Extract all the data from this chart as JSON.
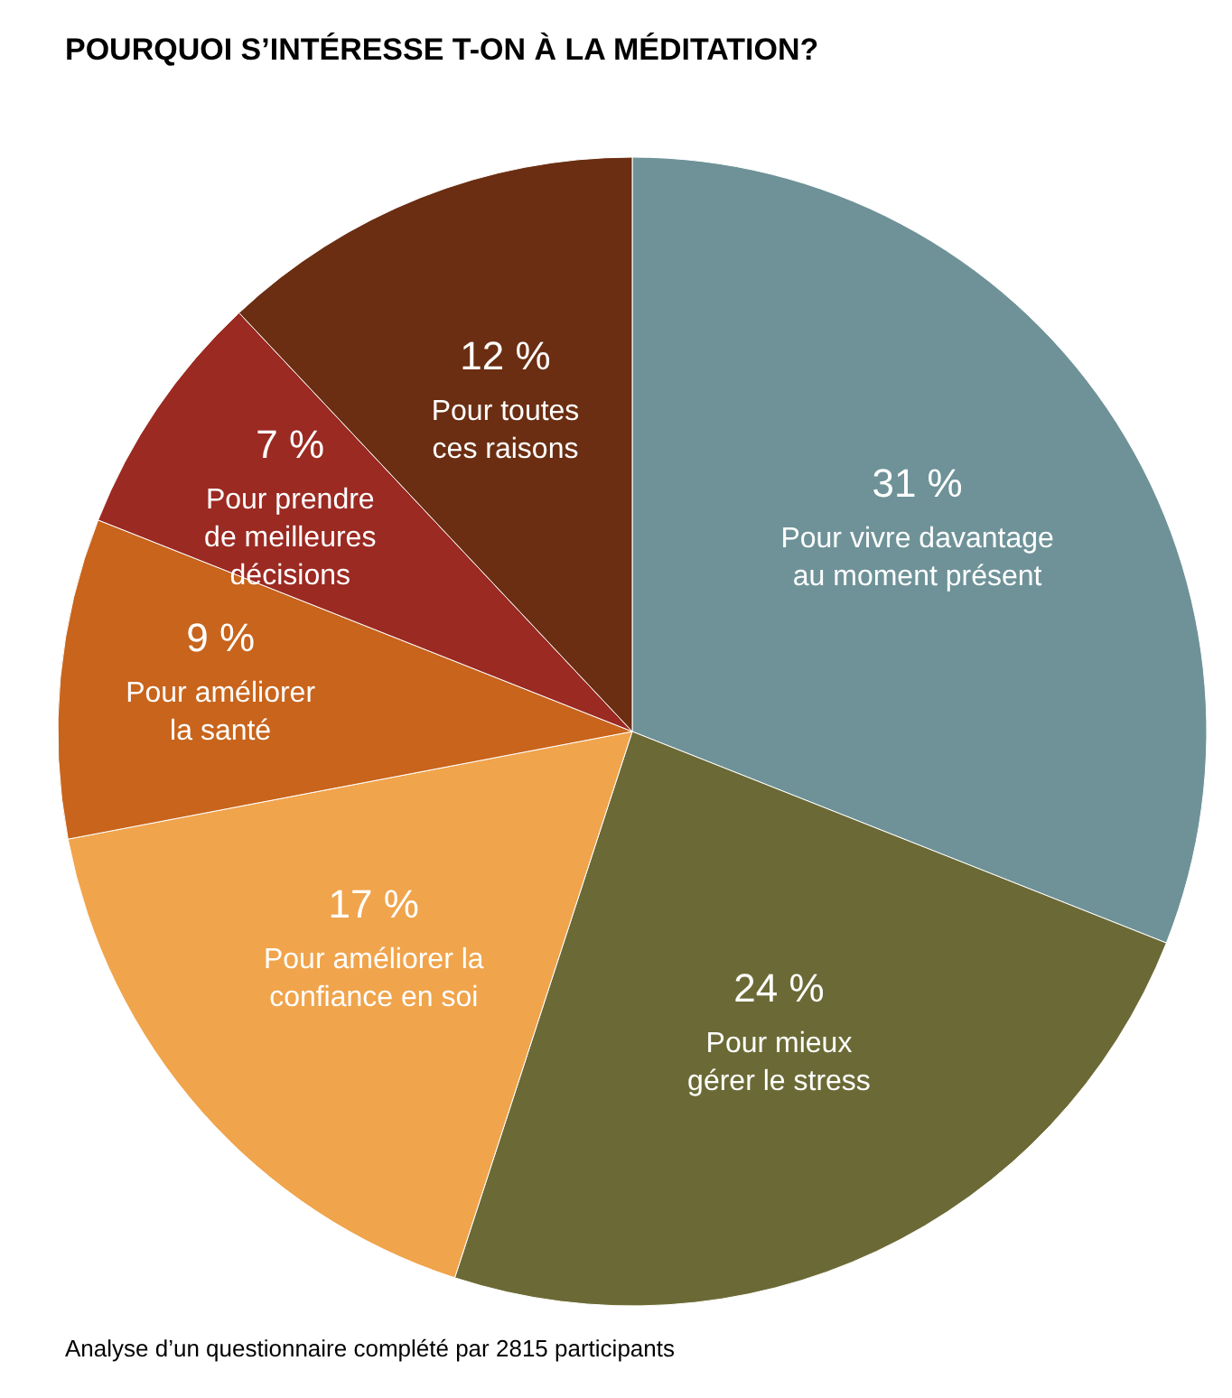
{
  "chart_data": {
    "type": "pie",
    "title": "POURQUOI S’INTÉRESSE T-ON À LA MÉDITATION?",
    "categories": [
      "Pour vivre davantage\nau moment présent",
      "Pour mieux\ngérer le stress",
      "Pour améliorer la\nconfiance en soi",
      "Pour améliorer\nla santé",
      "Pour prendre\nde meilleures\ndécisions",
      "Pour toutes\nces raisons"
    ],
    "values": [
      31,
      24,
      17,
      9,
      7,
      12
    ],
    "value_labels": [
      "31 %",
      "24 %",
      "17 %",
      "9 %",
      "7 %",
      "12 %"
    ],
    "colors": [
      "#6e9298",
      "#6b6a36",
      "#f0a44c",
      "#c8641c",
      "#9b2a22",
      "#6b2e12"
    ],
    "annotations": [
      "Analyse d’un questionnaire complété par 2815 participants"
    ]
  }
}
